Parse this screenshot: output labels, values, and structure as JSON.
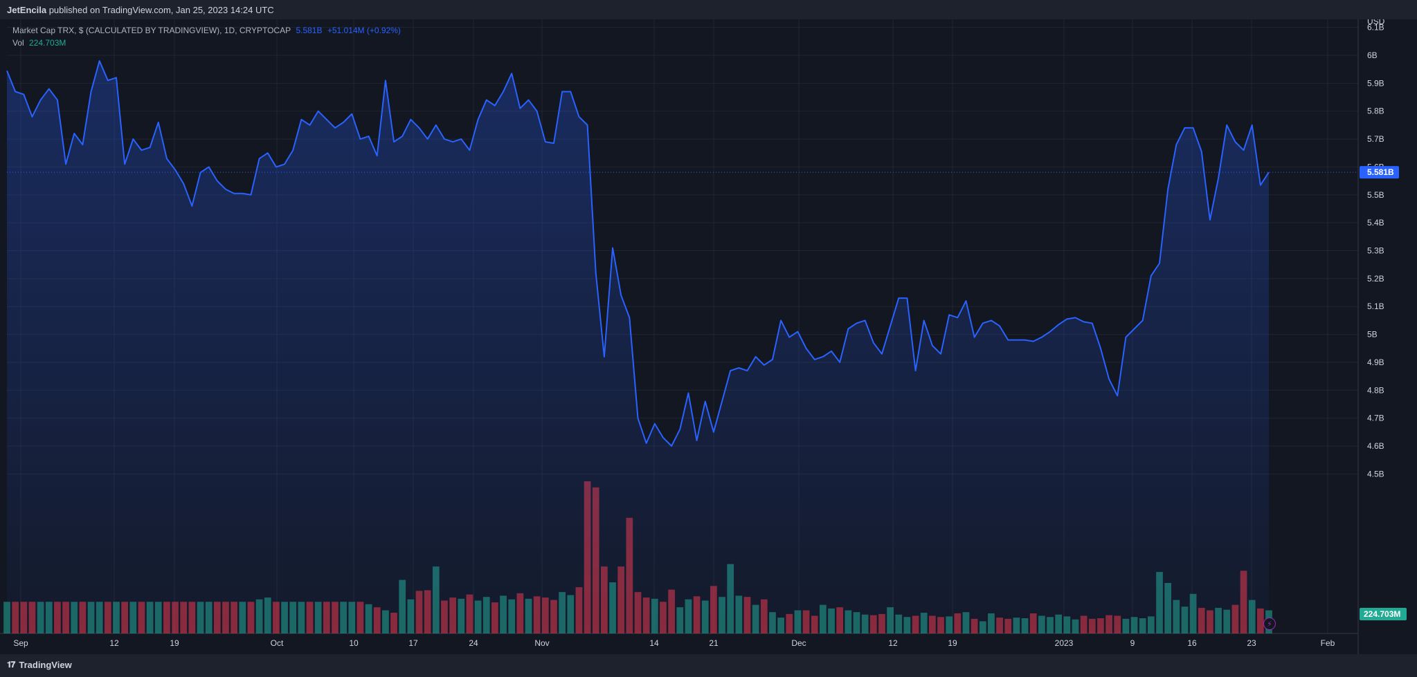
{
  "header": {
    "publisher": "JetEncila",
    "published_text": " published on TradingView.com, Jan 25, 2023 14:24 UTC"
  },
  "legend": {
    "symbol": "Market Cap TRX, $ (CALCULATED BY TRADINGVIEW), 1D, CRYPTOCAP",
    "last_value": "5.581B",
    "change": "+51.014M (+0.92%)",
    "vol_label": "Vol",
    "vol_value": "224.703M"
  },
  "axis": {
    "currency": "USD",
    "y_ticks": [
      "6.1B",
      "6B",
      "5.9B",
      "5.8B",
      "5.7B",
      "5.6B",
      "5.5B",
      "5.4B",
      "5.3B",
      "5.2B",
      "5.1B",
      "5B",
      "4.9B",
      "4.8B",
      "4.7B",
      "4.6B",
      "4.5B"
    ],
    "price_label": "5.581B",
    "volume_label": "224.703M",
    "x_ticks": [
      "Sep",
      "12",
      "19",
      "Oct",
      "10",
      "17",
      "24",
      "Nov",
      "14",
      "21",
      "Dec",
      "12",
      "19",
      "2023",
      "9",
      "16",
      "23",
      "Feb"
    ]
  },
  "footer": {
    "brand": "TradingView"
  },
  "colors": {
    "line": "#2962ff",
    "up_volume": "#22ab94",
    "down_volume": "#f23645",
    "background": "#131722",
    "grid": "#2a2e39"
  },
  "chart_data": {
    "type": "area",
    "title": "Market Cap TRX, $ (CALCULATED BY TRADINGVIEW), 1D, CRYPTOCAP",
    "ylabel": "USD",
    "ylim": [
      4.5,
      6.1
    ],
    "y_unit": "B",
    "grid": true,
    "legend_position": "top-left",
    "last_value": 5.581,
    "series": [
      {
        "name": "Market Cap TRX",
        "values": [
          5.945,
          5.87,
          5.86,
          5.78,
          5.84,
          5.88,
          5.84,
          5.61,
          5.72,
          5.68,
          5.87,
          5.98,
          5.91,
          5.92,
          5.61,
          5.7,
          5.66,
          5.67,
          5.76,
          5.63,
          5.59,
          5.54,
          5.46,
          5.58,
          5.6,
          5.55,
          5.52,
          5.505,
          5.505,
          5.5,
          5.63,
          5.65,
          5.6,
          5.61,
          5.66,
          5.77,
          5.75,
          5.8,
          5.77,
          5.74,
          5.76,
          5.79,
          5.7,
          5.71,
          5.64,
          5.91,
          5.69,
          5.71,
          5.77,
          5.74,
          5.7,
          5.75,
          5.7,
          5.69,
          5.7,
          5.66,
          5.77,
          5.84,
          5.82,
          5.87,
          5.935,
          5.81,
          5.84,
          5.8,
          5.69,
          5.685,
          5.87,
          5.87,
          5.78,
          5.75,
          5.22,
          4.92,
          5.31,
          5.14,
          5.06,
          4.7,
          4.61,
          4.68,
          4.63,
          4.6,
          4.66,
          4.79,
          4.62,
          4.76,
          4.65,
          4.76,
          4.87,
          4.88,
          4.87,
          4.92,
          4.89,
          4.91,
          5.05,
          4.99,
          5.01,
          4.95,
          4.91,
          4.92,
          4.94,
          4.9,
          5.02,
          5.04,
          5.05,
          4.97,
          4.93,
          5.03,
          5.13,
          5.13,
          4.87,
          5.05,
          4.96,
          4.93,
          5.07,
          5.06,
          5.12,
          4.99,
          5.04,
          5.05,
          5.03,
          4.98,
          4.98,
          4.98,
          4.975,
          4.99,
          5.01,
          5.035,
          5.055,
          5.06,
          5.045,
          5.04,
          4.95,
          4.84,
          4.78,
          4.99,
          5.02,
          5.05,
          5.21,
          5.255,
          5.52,
          5.68,
          5.74,
          5.74,
          5.655,
          5.41,
          5.56,
          5.75,
          5.69,
          5.66,
          5.75,
          5.535,
          5.581
        ]
      },
      {
        "name": "Vol",
        "values": [
          100,
          100,
          100,
          100,
          100,
          100,
          100,
          100,
          100,
          100,
          100,
          100,
          100,
          100,
          100,
          100,
          100,
          100,
          100,
          100,
          100,
          100,
          100,
          100,
          100,
          100,
          100,
          100,
          100,
          100,
          105,
          112,
          100,
          100,
          100,
          100,
          100,
          100,
          100,
          100,
          100,
          100,
          100,
          95,
          90,
          84,
          80,
          142,
          102,
          120,
          122,
          173,
          98,
          105,
          103,
          113,
          98,
          106,
          94,
          110,
          103,
          115,
          104,
          108,
          106,
          102,
          117,
          112,
          127,
          161,
          143,
          127,
          121,
          123,
          119,
          126,
          94,
          104,
          102,
          119,
          114,
          121,
          123,
          120,
          135,
          116,
          144,
          126,
          125,
          120,
          127,
          80,
          62,
          70,
          83,
          82,
          67,
          120,
          108,
          122,
          114,
          107,
          99,
          101,
          103,
          135,
          99,
          90,
          98,
          106,
          95,
          91,
          97,
          109,
          115,
          86,
          76,
          113,
          90,
          80,
          86,
          84,
          106,
          99,
          93,
          103,
          97,
          87,
          97,
          88,
          90,
          100,
          99,
          87,
          91,
          90,
          97,
          144,
          123,
          106,
          100,
          101,
          105,
          101,
          93,
          89,
          83,
          80,
          75,
          76,
          73,
          72,
          74,
          73,
          74,
          72,
          72,
          71
        ]
      }
    ],
    "volume_values_M": [
      520,
      520,
      520,
      520,
      520,
      520,
      520,
      520,
      520,
      520,
      520,
      520,
      520,
      520,
      520,
      520,
      520,
      520,
      520,
      520,
      520,
      520,
      520,
      520,
      520,
      520,
      520,
      520,
      520,
      520,
      560,
      590,
      520,
      520,
      520,
      520,
      520,
      520,
      520,
      520,
      520,
      520,
      520,
      480,
      430,
      380,
      340,
      880,
      560,
      700,
      710,
      1100,
      540,
      590,
      570,
      640,
      540,
      600,
      510,
      620,
      560,
      660,
      570,
      610,
      590,
      550,
      680,
      630,
      760,
      2500,
      2400,
      1100,
      840,
      1100,
      1900,
      680,
      590,
      570,
      520,
      720,
      430,
      560,
      610,
      540,
      780,
      600,
      1140,
      620,
      600,
      470,
      560,
      350,
      260,
      320,
      380,
      380,
      290,
      470,
      410,
      430,
      380,
      350,
      310,
      300,
      320,
      430,
      310,
      270,
      290,
      340,
      290,
      270,
      280,
      330,
      350,
      240,
      200,
      330,
      260,
      240,
      260,
      250,
      330,
      290,
      270,
      310,
      280,
      230,
      290,
      240,
      250,
      300,
      290,
      240,
      270,
      250,
      280,
      1010,
      830,
      550,
      440,
      650,
      420,
      380,
      420,
      390,
      470,
      1030,
      550,
      410,
      380,
      360,
      430,
      360,
      500,
      370,
      430,
      380,
      390,
      450,
      430,
      400,
      380,
      224.703
    ],
    "volume_colors": "green=up, red=down",
    "x_ticks": [
      "Sep",
      "12",
      "19",
      "Oct",
      "10",
      "17",
      "24",
      "Nov",
      "14",
      "21",
      "Dec",
      "12",
      "19",
      "2023",
      "9",
      "16",
      "23",
      "Feb"
    ],
    "x_start": "2022-08-31",
    "x_end": "2023-01-25"
  }
}
